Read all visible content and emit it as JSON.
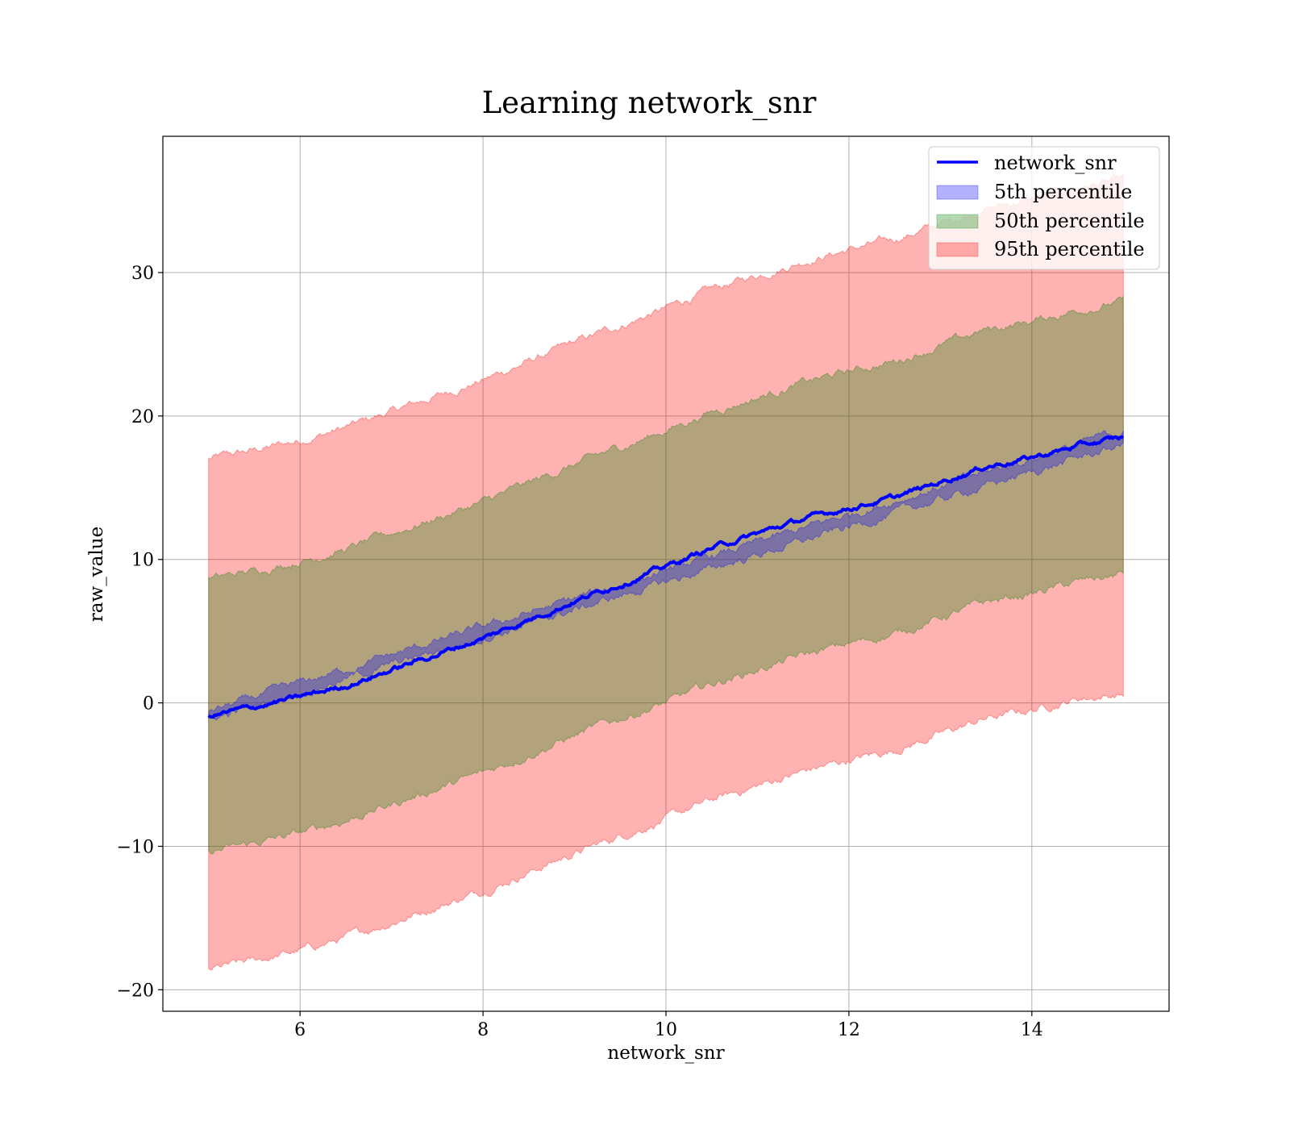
{
  "chart_data": {
    "type": "area",
    "title": "Learning network_snr",
    "xlabel": "network_snr",
    "ylabel": "raw_value",
    "xlim": [
      4.5,
      15.5
    ],
    "ylim": [
      -21.5,
      39.5
    ],
    "xticks": [
      6,
      8,
      10,
      12,
      14
    ],
    "yticks": [
      -20,
      -10,
      0,
      10,
      20,
      30
    ],
    "x_tick_labels": [
      "6",
      "8",
      "10",
      "12",
      "14"
    ],
    "y_tick_labels": [
      "−20",
      "−10",
      "0",
      "10",
      "20",
      "30"
    ],
    "grid": true,
    "legend_position": "top-right",
    "x_range": [
      5,
      15
    ],
    "series": [
      {
        "name": "network_snr",
        "kind": "line",
        "color": "#0000ff",
        "x": [
          5,
          5.5,
          6,
          6.5,
          7,
          7.5,
          8,
          8.5,
          9,
          9.5,
          10,
          10.5,
          11,
          11.5,
          12,
          12.5,
          13,
          13.5,
          14,
          14.5,
          15
        ],
        "y": [
          -0.9,
          -0.3,
          0.4,
          1.2,
          2.3,
          3.4,
          4.5,
          5.8,
          7.1,
          8.3,
          9.5,
          10.8,
          11.8,
          12.8,
          13.6,
          14.3,
          15.4,
          16.5,
          17.1,
          17.9,
          18.5
        ]
      },
      {
        "name": "5th percentile",
        "kind": "band",
        "color": "#0000ff",
        "x": [
          5,
          15
        ],
        "lower": [
          -1.2,
          18.0
        ],
        "upper": [
          -0.6,
          19.0
        ]
      },
      {
        "name": "50th percentile",
        "kind": "band",
        "color": "#008000",
        "x": [
          5,
          5.5,
          6,
          6.5,
          7,
          7.5,
          8,
          8.5,
          9,
          9.5,
          10,
          10.5,
          11,
          11.5,
          12,
          12.5,
          13,
          13.5,
          14,
          14.5,
          15
        ],
        "lower": [
          -10.4,
          -9.8,
          -9.1,
          -8.2,
          -7.1,
          -6.0,
          -4.9,
          -3.6,
          -2.3,
          -1.1,
          0.0,
          1.3,
          2.3,
          3.3,
          4.1,
          4.8,
          5.9,
          7.0,
          7.6,
          8.4,
          9.0
        ],
        "upper": [
          8.6,
          9.2,
          9.9,
          10.7,
          11.8,
          12.9,
          14.0,
          15.3,
          16.6,
          17.8,
          19.0,
          20.3,
          21.3,
          22.3,
          23.1,
          23.8,
          24.9,
          26.0,
          26.6,
          27.4,
          28.0
        ]
      },
      {
        "name": "95th percentile",
        "kind": "band",
        "color": "#ff0000",
        "x": [
          5,
          5.5,
          6,
          6.5,
          7,
          7.5,
          8,
          8.5,
          9,
          9.5,
          10,
          10.5,
          11,
          11.5,
          12,
          12.5,
          13,
          13.5,
          14,
          14.5,
          15
        ],
        "lower": [
          -18.6,
          -18.0,
          -17.3,
          -16.4,
          -15.3,
          -14.2,
          -13.1,
          -11.8,
          -10.5,
          -9.3,
          -8.1,
          -6.8,
          -5.8,
          -4.8,
          -4.0,
          -3.3,
          -2.2,
          -1.1,
          -0.5,
          0.3,
          0.6
        ],
        "upper": [
          17.0,
          17.6,
          18.3,
          19.2,
          20.3,
          21.4,
          22.5,
          23.8,
          25.1,
          26.3,
          27.5,
          28.8,
          29.8,
          30.8,
          31.6,
          32.3,
          33.4,
          34.5,
          35.1,
          35.9,
          36.5
        ]
      }
    ]
  }
}
